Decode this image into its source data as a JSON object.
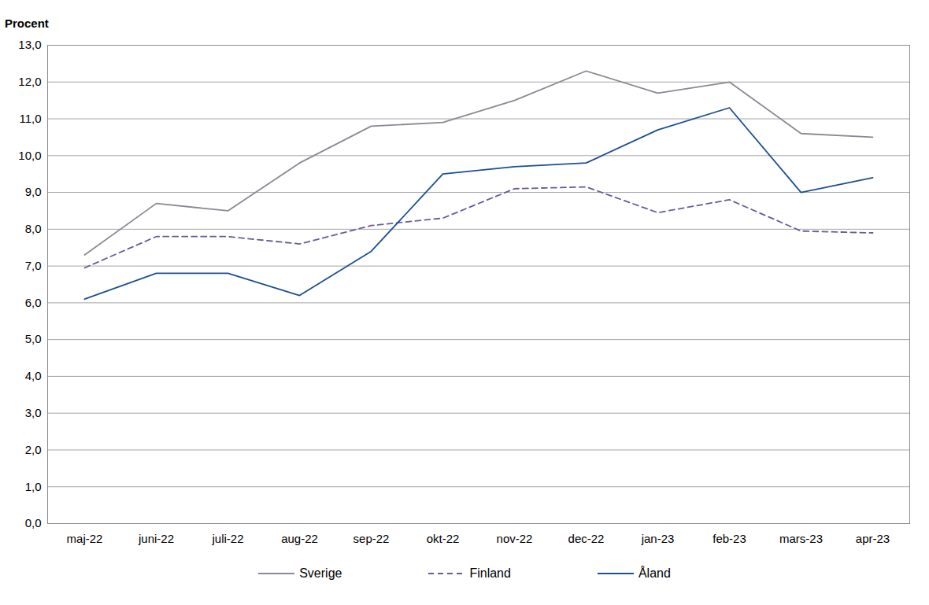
{
  "chart_data": {
    "type": "line",
    "y_label": "Procent",
    "categories": [
      "maj-22",
      "juni-22",
      "juli-22",
      "aug-22",
      "sep-22",
      "okt-22",
      "nov-22",
      "dec-22",
      "jan-23",
      "feb-23",
      "mars-23",
      "apr-23"
    ],
    "series": [
      {
        "name": "Sverige",
        "color": "#8a8a94",
        "line_style": "solid",
        "values": [
          7.3,
          8.7,
          8.5,
          9.8,
          10.8,
          10.9,
          11.5,
          12.3,
          11.7,
          12.0,
          10.6,
          10.5
        ]
      },
      {
        "name": "Finland",
        "color": "#6a5a9c",
        "line_style": "dashed",
        "values": [
          6.95,
          7.8,
          7.8,
          7.6,
          8.1,
          8.3,
          9.1,
          9.15,
          8.45,
          8.8,
          7.95,
          7.9
        ]
      },
      {
        "name": "Åland",
        "color": "#1b4f96",
        "line_style": "solid",
        "values": [
          6.1,
          6.8,
          6.8,
          6.2,
          7.4,
          9.5,
          9.7,
          9.8,
          10.7,
          11.3,
          9.0,
          9.4
        ]
      }
    ],
    "ylim": [
      0,
      13
    ],
    "yticks": [
      {
        "value": 0,
        "label": "0,0"
      },
      {
        "value": 1,
        "label": "1,0"
      },
      {
        "value": 2,
        "label": "2,0"
      },
      {
        "value": 3,
        "label": "3,0"
      },
      {
        "value": 4,
        "label": "4,0"
      },
      {
        "value": 5,
        "label": "5,0"
      },
      {
        "value": 6,
        "label": "6,0"
      },
      {
        "value": 7,
        "label": "7,0"
      },
      {
        "value": 8,
        "label": "8,0"
      },
      {
        "value": 9,
        "label": "9,0"
      },
      {
        "value": 10,
        "label": "10,0"
      },
      {
        "value": 11,
        "label": "11,0"
      },
      {
        "value": 12,
        "label": "12,0"
      },
      {
        "value": 13,
        "label": "13,0"
      }
    ],
    "grid": true,
    "legend": "bottom"
  }
}
